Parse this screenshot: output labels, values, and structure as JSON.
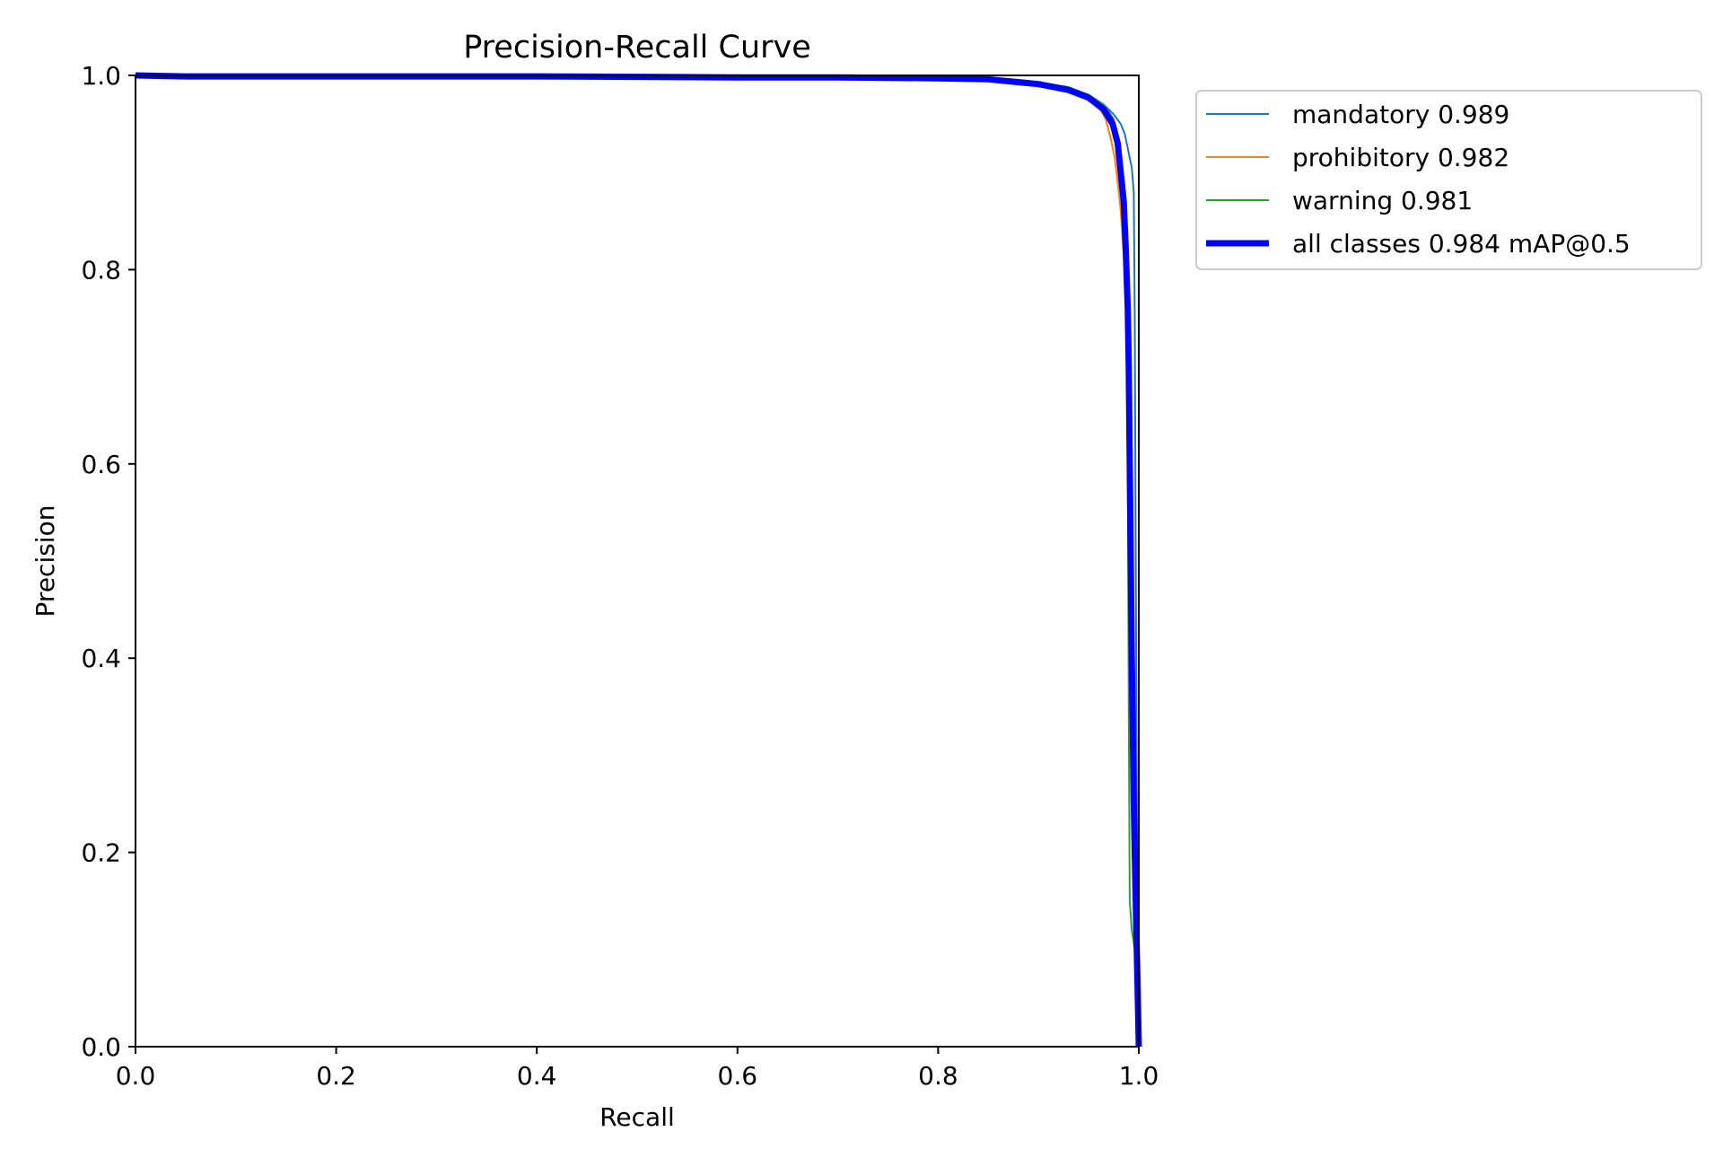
{
  "chart_data": {
    "type": "line",
    "title": "Precision-Recall Curve",
    "xlabel": "Recall",
    "ylabel": "Precision",
    "xlim": [
      0,
      1
    ],
    "ylim": [
      0,
      1
    ],
    "xticks": [
      "0.0",
      "0.2",
      "0.4",
      "0.6",
      "0.8",
      "1.0"
    ],
    "yticks": [
      "0.0",
      "0.2",
      "0.4",
      "0.6",
      "0.8",
      "1.0"
    ],
    "grid": false,
    "legend_position": "outside-top-right",
    "series": [
      {
        "name": "mandatory 0.989",
        "color": "#1f77b4",
        "x": [
          0,
          0.05,
          0.2,
          0.4,
          0.6,
          0.7,
          0.8,
          0.85,
          0.9,
          0.93,
          0.95,
          0.965,
          0.975,
          0.982,
          0.986,
          0.989,
          0.991,
          0.993,
          0.995,
          0.996,
          0.997,
          0.998,
          0.999,
          1.0
        ],
        "y": [
          1.0,
          0.999,
          0.999,
          0.999,
          0.998,
          0.998,
          0.997,
          0.996,
          0.992,
          0.987,
          0.98,
          0.97,
          0.96,
          0.95,
          0.94,
          0.925,
          0.915,
          0.905,
          0.88,
          0.75,
          0.5,
          0.25,
          0.1,
          0.0
        ]
      },
      {
        "name": "prohibitory 0.982",
        "color": "#ff7f0e",
        "x": [
          0,
          0.05,
          0.2,
          0.4,
          0.6,
          0.7,
          0.8,
          0.85,
          0.9,
          0.93,
          0.95,
          0.96,
          0.967,
          0.972,
          0.976,
          0.979,
          0.982,
          0.984,
          0.986,
          0.988,
          0.991,
          0.994,
          0.997,
          1.0
        ],
        "y": [
          1.0,
          0.999,
          0.999,
          0.999,
          0.998,
          0.998,
          0.997,
          0.996,
          0.991,
          0.985,
          0.977,
          0.968,
          0.955,
          0.935,
          0.915,
          0.89,
          0.86,
          0.83,
          0.8,
          0.77,
          0.55,
          0.3,
          0.1,
          0.0
        ]
      },
      {
        "name": "warning 0.981",
        "color": "#2ca02c",
        "x": [
          0,
          0.05,
          0.2,
          0.4,
          0.6,
          0.7,
          0.8,
          0.85,
          0.9,
          0.93,
          0.95,
          0.965,
          0.975,
          0.98,
          0.984,
          0.986,
          0.988,
          0.989,
          0.99,
          0.991,
          0.993,
          0.996,
          0.998,
          1.0
        ],
        "y": [
          1.0,
          0.999,
          0.999,
          0.999,
          0.998,
          0.998,
          0.997,
          0.996,
          0.993,
          0.988,
          0.98,
          0.97,
          0.955,
          0.93,
          0.9,
          0.85,
          0.78,
          0.6,
          0.35,
          0.15,
          0.12,
          0.1,
          0.05,
          0.0
        ]
      },
      {
        "name": "all classes 0.984 mAP@0.5",
        "color": "#0000ff",
        "x": [
          0,
          0.05,
          0.2,
          0.4,
          0.6,
          0.7,
          0.8,
          0.85,
          0.9,
          0.93,
          0.95,
          0.965,
          0.974,
          0.979,
          0.982,
          0.985,
          0.987,
          0.989,
          0.99,
          0.991,
          0.993,
          0.995,
          0.997,
          0.999,
          1.0
        ],
        "y": [
          1.0,
          0.999,
          0.999,
          0.999,
          0.998,
          0.998,
          0.997,
          0.996,
          0.991,
          0.985,
          0.977,
          0.965,
          0.95,
          0.93,
          0.9,
          0.87,
          0.82,
          0.76,
          0.7,
          0.6,
          0.4,
          0.25,
          0.15,
          0.05,
          0.0
        ]
      }
    ]
  }
}
